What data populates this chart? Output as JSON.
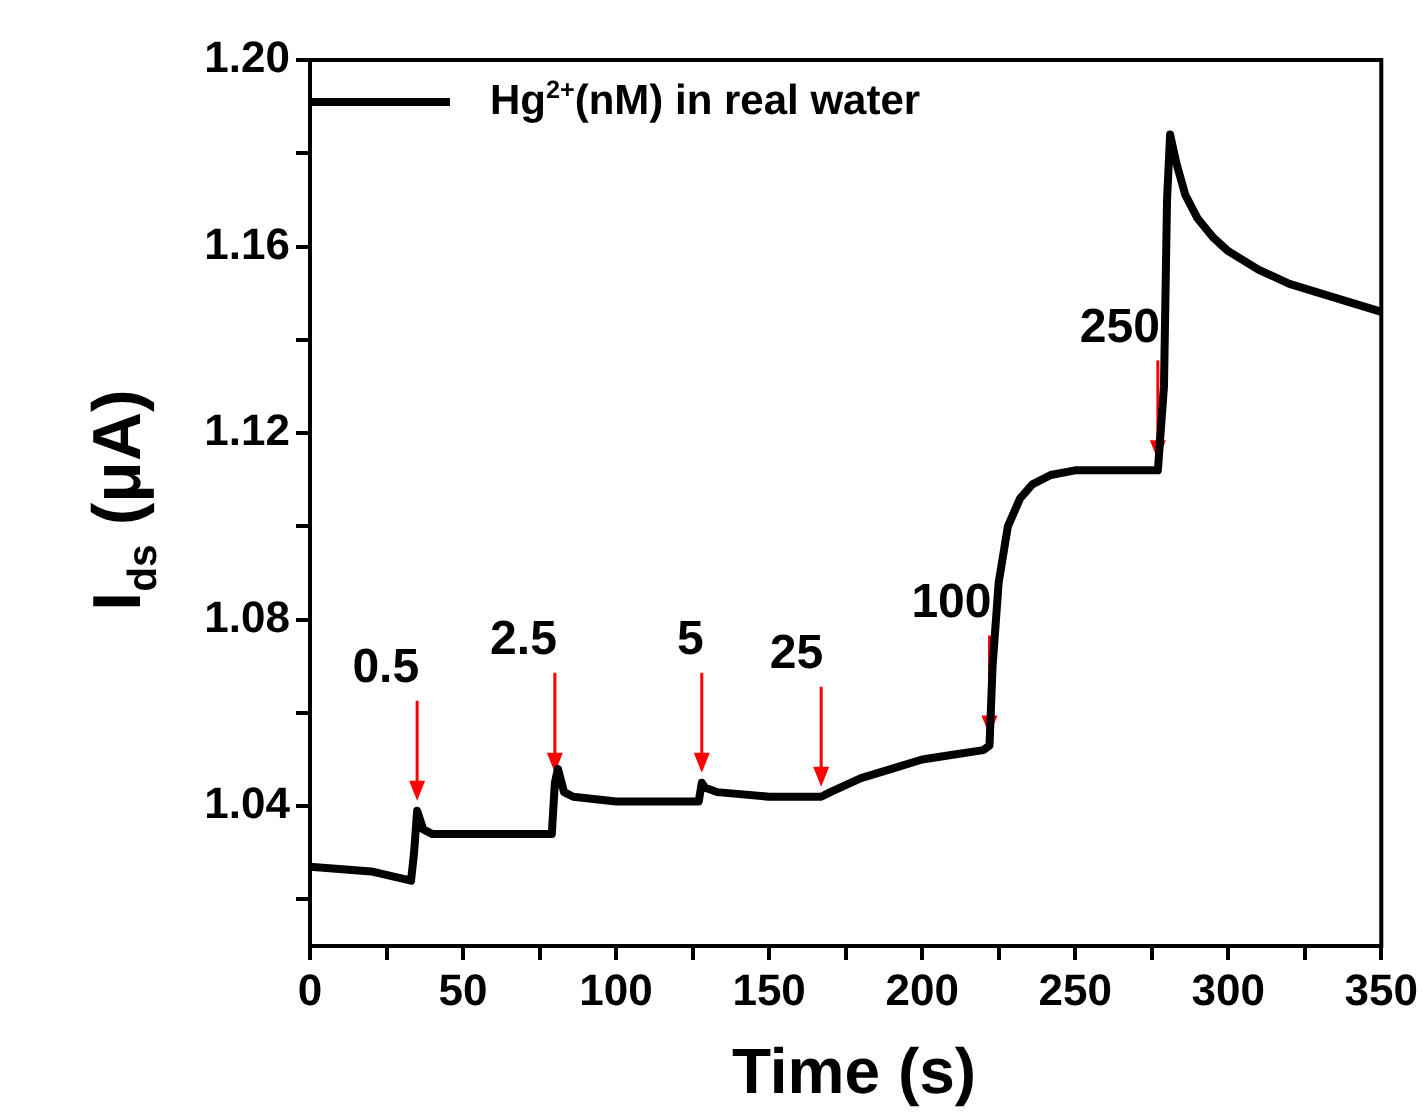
{
  "chart_data": {
    "type": "line",
    "xlabel": "Time (s)",
    "ylabel": "I$_{ds}$ (μA)",
    "x": [
      0,
      20,
      33,
      34,
      35,
      37,
      40,
      60,
      79,
      80,
      81,
      83,
      86,
      100,
      127,
      128,
      129,
      133,
      150,
      167,
      170,
      180,
      190,
      200,
      210,
      220,
      222,
      223,
      225,
      228,
      232,
      236,
      242,
      250,
      265,
      277,
      279,
      280,
      281,
      283,
      286,
      290,
      295,
      300,
      310,
      320,
      335,
      350
    ],
    "series": [
      {
        "name": "Hg$^{2+}$(nM) in real water",
        "color": "#000000",
        "values": [
          1.027,
          1.026,
          1.024,
          1.03,
          1.039,
          1.035,
          1.034,
          1.034,
          1.034,
          1.045,
          1.048,
          1.043,
          1.042,
          1.041,
          1.041,
          1.045,
          1.044,
          1.043,
          1.042,
          1.042,
          1.043,
          1.046,
          1.048,
          1.05,
          1.051,
          1.052,
          1.053,
          1.07,
          1.088,
          1.1,
          1.106,
          1.109,
          1.111,
          1.112,
          1.112,
          1.112,
          1.13,
          1.17,
          1.184,
          1.178,
          1.171,
          1.166,
          1.162,
          1.159,
          1.155,
          1.152,
          1.149,
          1.146
        ]
      }
    ],
    "xlim": [
      0,
      350
    ],
    "ylim": [
      1.01,
      1.2
    ],
    "xticks": [
      0,
      {
        "value": 25,
        "label": null
      },
      50,
      {
        "value": 75,
        "label": null
      },
      100,
      {
        "value": 125,
        "label": null
      },
      150,
      {
        "value": 175,
        "label": null
      },
      200,
      {
        "value": 225,
        "label": null
      },
      250,
      {
        "value": 275,
        "label": null
      },
      300,
      {
        "value": 325,
        "label": null
      },
      350
    ],
    "yticks": [
      {
        "value": 1.02,
        "label": null
      },
      {
        "value": 1.04,
        "label": "1.04"
      },
      {
        "value": 1.06,
        "label": null
      },
      {
        "value": 1.08,
        "label": "1.08"
      },
      {
        "value": 1.1,
        "label": null
      },
      {
        "value": 1.12,
        "label": "1.12"
      },
      {
        "value": 1.14,
        "label": null
      },
      {
        "value": 1.16,
        "label": "1.16"
      },
      {
        "value": 1.18,
        "label": null
      },
      {
        "value": 1.2,
        "label": "1.20"
      }
    ],
    "legend": "top left",
    "marker": "none",
    "line_style": "solid",
    "annotations": [
      {
        "text": "0.5",
        "x": 35,
        "y": 1.039
      },
      {
        "text": "2.5",
        "x": 80,
        "y": 1.045
      },
      {
        "text": "5",
        "x": 128,
        "y": 1.045
      },
      {
        "text": "25",
        "x": 167,
        "y": 1.042
      },
      {
        "text": "100",
        "x": 222,
        "y": 1.053
      },
      {
        "text": "250",
        "x": 277,
        "y": 1.112
      }
    ]
  }
}
